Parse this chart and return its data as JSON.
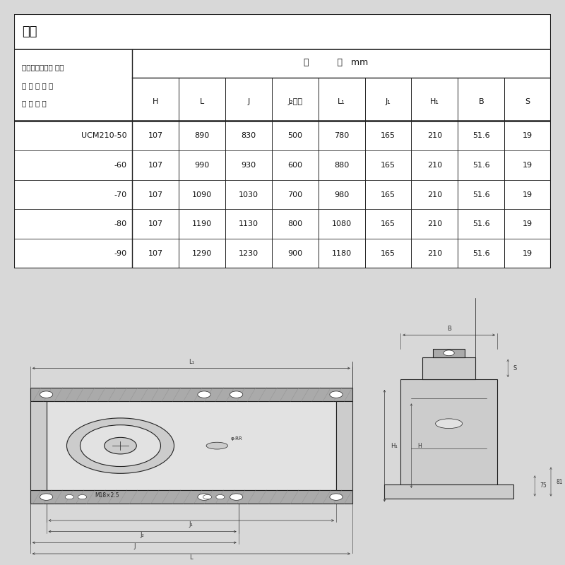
{
  "title": "寸法",
  "header_left_lines": [
    "ストレッチャー 注）",
    "ユ ニ ッ ト の",
    "呼 び 番 号"
  ],
  "header_right_label": "寸          法   mm",
  "col_headers": [
    "H",
    "L",
    "J",
    "J₂注）",
    "L₁",
    "J₁",
    "H₁",
    "B",
    "S"
  ],
  "rows": [
    [
      "UCM210-50",
      "107",
      "890",
      "830",
      "500",
      "780",
      "165",
      "210",
      "51.6",
      "19"
    ],
    [
      "-60",
      "107",
      "990",
      "930",
      "600",
      "880",
      "165",
      "210",
      "51.6",
      "19"
    ],
    [
      "-70",
      "107",
      "1090",
      "1030",
      "700",
      "980",
      "165",
      "210",
      "51.6",
      "19"
    ],
    [
      "-80",
      "107",
      "1190",
      "1130",
      "800",
      "1080",
      "165",
      "210",
      "51.6",
      "19"
    ],
    [
      "-90",
      "107",
      "1290",
      "1230",
      "900",
      "1180",
      "165",
      "210",
      "51.6",
      "19"
    ]
  ],
  "bg_color": "#d8d8d8",
  "table_bg": "#ffffff",
  "border_color": "#222222",
  "text_color": "#111111",
  "dim_color": "#333333"
}
